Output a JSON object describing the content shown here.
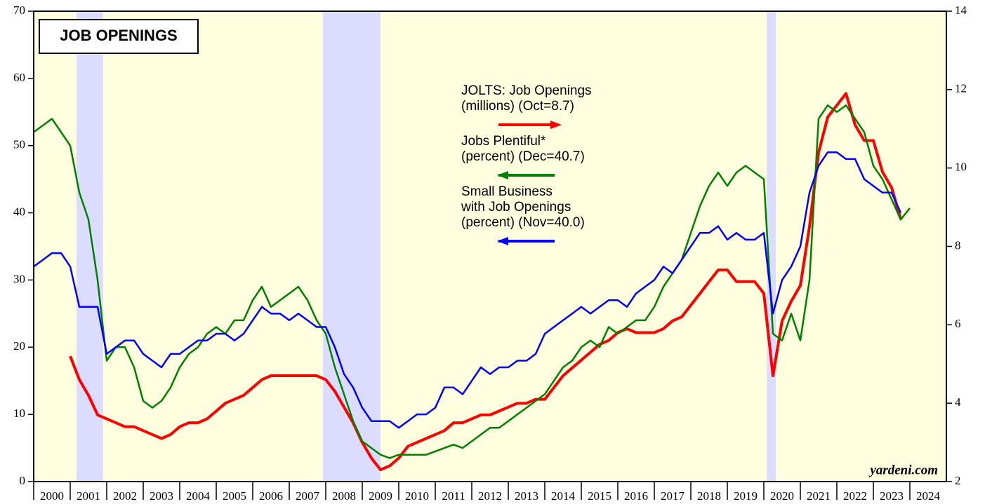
{
  "chart_data": {
    "type": "line",
    "title": "JOB OPENINGS",
    "annotation": "yardeni.com",
    "xlim": [
      2000,
      2025
    ],
    "xticks": [
      2000,
      2001,
      2002,
      2003,
      2004,
      2005,
      2006,
      2007,
      2008,
      2009,
      2010,
      2011,
      2012,
      2013,
      2014,
      2015,
      2016,
      2017,
      2018,
      2019,
      2020,
      2021,
      2022,
      2023,
      2024
    ],
    "ylim": [
      0,
      70
    ],
    "yticks": [
      0,
      10,
      20,
      30,
      40,
      50,
      60,
      70
    ],
    "y2lim": [
      2,
      14
    ],
    "y2ticks": [
      2,
      4,
      6,
      8,
      10,
      12,
      14
    ],
    "background": "#ffffe0",
    "recession_color": "#dcdcff",
    "recessions": [
      [
        2001.17,
        2001.9
      ],
      [
        2007.92,
        2009.5
      ],
      [
        2020.08,
        2020.33
      ]
    ],
    "x": [
      2000,
      2000.25,
      2000.5,
      2000.75,
      2001,
      2001.25,
      2001.5,
      2001.75,
      2002,
      2002.25,
      2002.5,
      2002.75,
      2003,
      2003.25,
      2003.5,
      2003.75,
      2004,
      2004.25,
      2004.5,
      2004.75,
      2005,
      2005.25,
      2005.5,
      2005.75,
      2006,
      2006.25,
      2006.5,
      2006.75,
      2007,
      2007.25,
      2007.5,
      2007.75,
      2008,
      2008.25,
      2008.5,
      2008.75,
      2009,
      2009.25,
      2009.5,
      2009.75,
      2010,
      2010.25,
      2010.5,
      2010.75,
      2011,
      2011.25,
      2011.5,
      2011.75,
      2012,
      2012.25,
      2012.5,
      2012.75,
      2013,
      2013.25,
      2013.5,
      2013.75,
      2014,
      2014.25,
      2014.5,
      2014.75,
      2015,
      2015.25,
      2015.5,
      2015.75,
      2016,
      2016.25,
      2016.5,
      2016.75,
      2017,
      2017.25,
      2017.5,
      2017.75,
      2018,
      2018.25,
      2018.5,
      2018.75,
      2019,
      2019.25,
      2019.5,
      2019.75,
      2020,
      2020.25,
      2020.5,
      2020.75,
      2021,
      2021.25,
      2021.5,
      2021.75,
      2022,
      2022.25,
      2022.5,
      2022.75,
      2023,
      2023.25,
      2023.5,
      2023.75,
      2024
    ],
    "series": [
      {
        "name": "JOLTS: Job Openings\n(millions) (Oct=8.7)",
        "color": "#ff0000",
        "axis": "y2",
        "values": [
          null,
          null,
          null,
          null,
          5.2,
          4.6,
          4.2,
          3.7,
          3.6,
          3.5,
          3.4,
          3.4,
          3.3,
          3.2,
          3.1,
          3.2,
          3.4,
          3.5,
          3.5,
          3.6,
          3.8,
          4.0,
          4.1,
          4.2,
          4.4,
          4.6,
          4.7,
          4.7,
          4.7,
          4.7,
          4.7,
          4.7,
          4.6,
          4.3,
          3.9,
          3.5,
          3.0,
          2.6,
          2.3,
          2.4,
          2.6,
          2.9,
          3.0,
          3.1,
          3.2,
          3.3,
          3.5,
          3.5,
          3.6,
          3.7,
          3.7,
          3.8,
          3.9,
          4.0,
          4.0,
          4.1,
          4.1,
          4.4,
          4.7,
          4.9,
          5.1,
          5.3,
          5.5,
          5.6,
          5.8,
          5.9,
          5.8,
          5.8,
          5.8,
          5.9,
          6.1,
          6.2,
          6.5,
          6.8,
          7.1,
          7.4,
          7.4,
          7.1,
          7.1,
          7.1,
          6.8,
          4.7,
          6.1,
          6.6,
          7.0,
          8.5,
          10.4,
          11.3,
          11.6,
          11.9,
          11.1,
          10.7,
          10.7,
          9.9,
          9.5,
          8.7,
          null
        ]
      },
      {
        "name": "Jobs Plentiful*\n(percent) (Dec=40.7)",
        "color": "#008000",
        "values": [
          52,
          53,
          54,
          52,
          50,
          43,
          39,
          30,
          18,
          20,
          20,
          17,
          12,
          11,
          12,
          14,
          17,
          19,
          20,
          22,
          23,
          22,
          24,
          24,
          27,
          29,
          26,
          27,
          28,
          29,
          27,
          24,
          22,
          17,
          13,
          9,
          6,
          5,
          4,
          3.5,
          4,
          4,
          4,
          4,
          4.5,
          5,
          5.5,
          5,
          6,
          7,
          8,
          8,
          9,
          10,
          11,
          12,
          13,
          15,
          17,
          18,
          20,
          21,
          20,
          23,
          22,
          23,
          24,
          24,
          26,
          29,
          31,
          33,
          37,
          41,
          44,
          46,
          44,
          46,
          47,
          46,
          45,
          22,
          21,
          25,
          21,
          30,
          54,
          56,
          55,
          56,
          54,
          52,
          47,
          45,
          42,
          39,
          40.7
        ]
      },
      {
        "name": "Small Business\nwith Job Openings\n(percent) (Nov=40.0)",
        "color": "#0000ff",
        "values": [
          32,
          33,
          34,
          34,
          32,
          26,
          26,
          26,
          19,
          20,
          21,
          21,
          19,
          18,
          17,
          19,
          19,
          20,
          21,
          21,
          22,
          22,
          21,
          22,
          24,
          26,
          25,
          25,
          24,
          25,
          24,
          23,
          23,
          20,
          16,
          14,
          11,
          9,
          9,
          9,
          8,
          9,
          10,
          10,
          11,
          14,
          14,
          13,
          15,
          17,
          16,
          17,
          17,
          18,
          18,
          19,
          22,
          23,
          24,
          25,
          26,
          25,
          26,
          27,
          27,
          26,
          28,
          29,
          30,
          32,
          31,
          33,
          35,
          37,
          37,
          38,
          36,
          37,
          36,
          36,
          37,
          25,
          30,
          32,
          35,
          43,
          47,
          49,
          49,
          48,
          48,
          45,
          44,
          43,
          43,
          40,
          null
        ]
      }
    ]
  }
}
